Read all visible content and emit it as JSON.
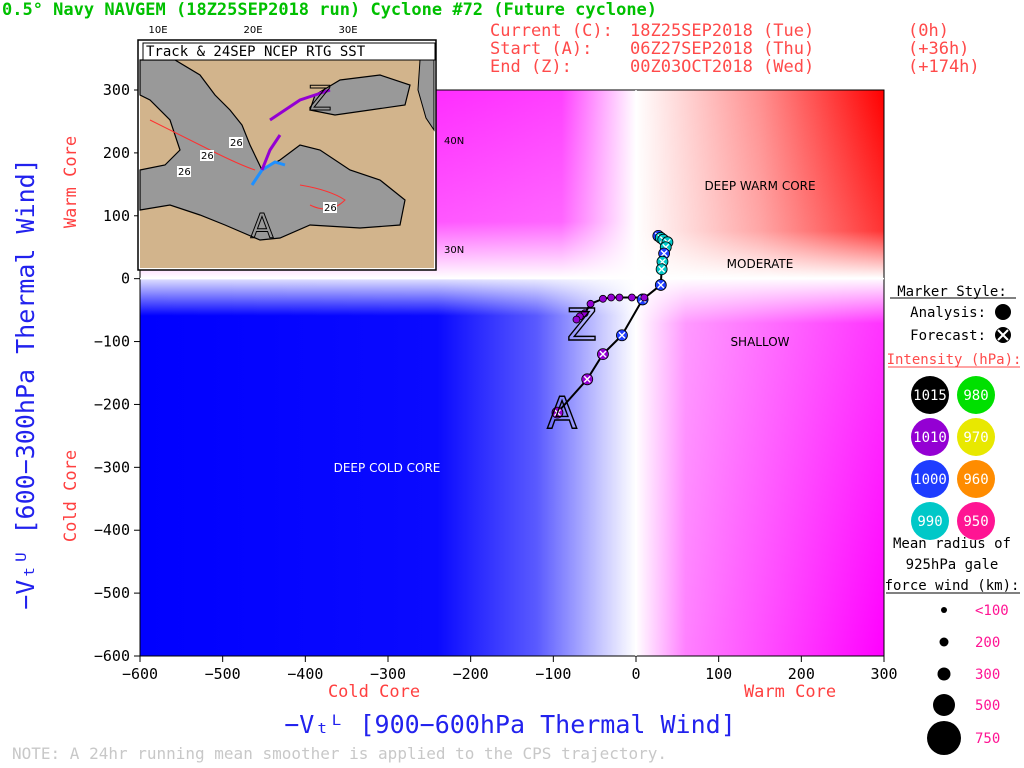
{
  "header": {
    "title": "0.5° Navy NAVGEM (18Z25SEP2018 run) Cyclone #72 (Future cyclone)",
    "current_label": "Current (C):",
    "current_value": "18Z25SEP2018 (Tue)",
    "current_offset": "(0h)",
    "start_label": "Start (A):",
    "start_value": "06Z27SEP2018 (Thu)",
    "start_offset": "(+36h)",
    "end_label": "End (Z):",
    "end_value": "00Z03OCT2018 (Wed)",
    "end_offset": "(+174h)"
  },
  "note": "NOTE:  A 24hr running mean smoother is applied to the CPS trajectory.",
  "inset": {
    "title": "Track & 24SEP NCEP RTG SST",
    "lon_labels": [
      "10E",
      "20E",
      "30E"
    ],
    "lat_labels": [
      "40N",
      "30N"
    ],
    "sst_labels": [
      "26",
      "26",
      "26",
      "26"
    ],
    "markers": [
      "Z",
      "A"
    ]
  },
  "regions": {
    "deep_warm_core": "DEEP WARM CORE",
    "moderate": "MODERATE",
    "shallow": "SHALLOW",
    "deep_cold_core": "DEEP COLD CORE"
  },
  "legend": {
    "marker_style": "Marker Style:",
    "analysis": "Analysis:",
    "forecast": "Forecast:",
    "intensity_title": "Intensity (hPa):",
    "intensity": [
      {
        "label": "1015",
        "color": "#000000",
        "text_color": "#ffffff"
      },
      {
        "label": "980",
        "color": "#00e000",
        "text_color": "#ffffff"
      },
      {
        "label": "1010",
        "color": "#9400d3",
        "text_color": "#ffffff"
      },
      {
        "label": "970",
        "color": "#e8e800",
        "text_color": "#ffffff"
      },
      {
        "label": "1000",
        "color": "#1e3cff",
        "text_color": "#ffffff"
      },
      {
        "label": "960",
        "color": "#ff8c00",
        "text_color": "#ffffff"
      },
      {
        "label": "990",
        "color": "#00c8c8",
        "text_color": "#ffffff"
      },
      {
        "label": "950",
        "color": "#ff1493",
        "text_color": "#ffffff"
      }
    ],
    "radius_title_1": "Mean radius of",
    "radius_title_2": "925hPa gale",
    "radius_title_3": "force wind (km):",
    "radius": [
      "<100",
      "200",
      "300",
      "500",
      "750"
    ]
  },
  "chart_data": {
    "type": "scatter",
    "title": "",
    "xlabel": "−Vₜᴸ [900−600hPa Thermal Wind]",
    "ylabel": "−Vₜᵁ [600−300hPa Thermal Wind]",
    "x_side_labels": {
      "left": "Cold Core",
      "right": "Warm Core"
    },
    "y_side_labels": {
      "bottom": "Cold Core",
      "top": "Warm Core"
    },
    "xlim": [
      -600,
      300
    ],
    "ylim": [
      -600,
      300
    ],
    "x_ticks": [
      -600,
      -500,
      -400,
      -300,
      -200,
      -100,
      0,
      100,
      200,
      300
    ],
    "y_ticks": [
      -600,
      -500,
      -400,
      -300,
      -200,
      -100,
      0,
      100,
      200,
      300
    ],
    "x_tick_labels": [
      "−600",
      "−500",
      "−400",
      "−300",
      "−200",
      "−100",
      "0",
      "100",
      "200",
      "300"
    ],
    "y_tick_labels": [
      "−600",
      "−500",
      "−400",
      "−300",
      "−200",
      "−100",
      "0",
      "100",
      "200",
      "300"
    ],
    "colors": {
      "cold": "#0000ff",
      "warm": "#ff0000",
      "accent": "#ff00ff"
    },
    "trajectory_markers": {
      "start": "A",
      "end": "Z"
    },
    "points": [
      {
        "x": 27,
        "y": 68,
        "color": "#1e3cff"
      },
      {
        "x": 30,
        "y": 65,
        "color": "#00c8c8"
      },
      {
        "x": 33,
        "y": 62,
        "color": "#00c8c8"
      },
      {
        "x": 38,
        "y": 58,
        "color": "#00c8c8"
      },
      {
        "x": 36,
        "y": 50,
        "color": "#00c8c8"
      },
      {
        "x": 34,
        "y": 40,
        "color": "#1e3cff"
      },
      {
        "x": 32,
        "y": 27,
        "color": "#00c8c8"
      },
      {
        "x": 31,
        "y": 15,
        "color": "#00c8c8"
      },
      {
        "x": 30,
        "y": -10,
        "color": "#1e3cff"
      },
      {
        "x": 8,
        "y": -33,
        "color": "#1e3cff"
      },
      {
        "x": -17,
        "y": -90,
        "color": "#1e3cff"
      },
      {
        "x": -40,
        "y": -120,
        "color": "#9400d3"
      },
      {
        "x": -59,
        "y": -160,
        "color": "#9400d3"
      },
      {
        "x": -95,
        "y": -213,
        "color": "#9400d3"
      },
      {
        "x": 10,
        "y": -30,
        "color": "#9400d3"
      },
      {
        "x": -5,
        "y": -30,
        "color": "#9400d3"
      },
      {
        "x": -20,
        "y": -30,
        "color": "#9400d3"
      },
      {
        "x": -30,
        "y": -30,
        "color": "#9400d3"
      },
      {
        "x": -40,
        "y": -32,
        "color": "#9400d3"
      },
      {
        "x": -55,
        "y": -40,
        "color": "#9400d3"
      },
      {
        "x": -62,
        "y": -55,
        "color": "#9400d3"
      },
      {
        "x": -68,
        "y": -60,
        "color": "#9400d3"
      },
      {
        "x": -72,
        "y": -65,
        "color": "#9400d3"
      }
    ]
  }
}
